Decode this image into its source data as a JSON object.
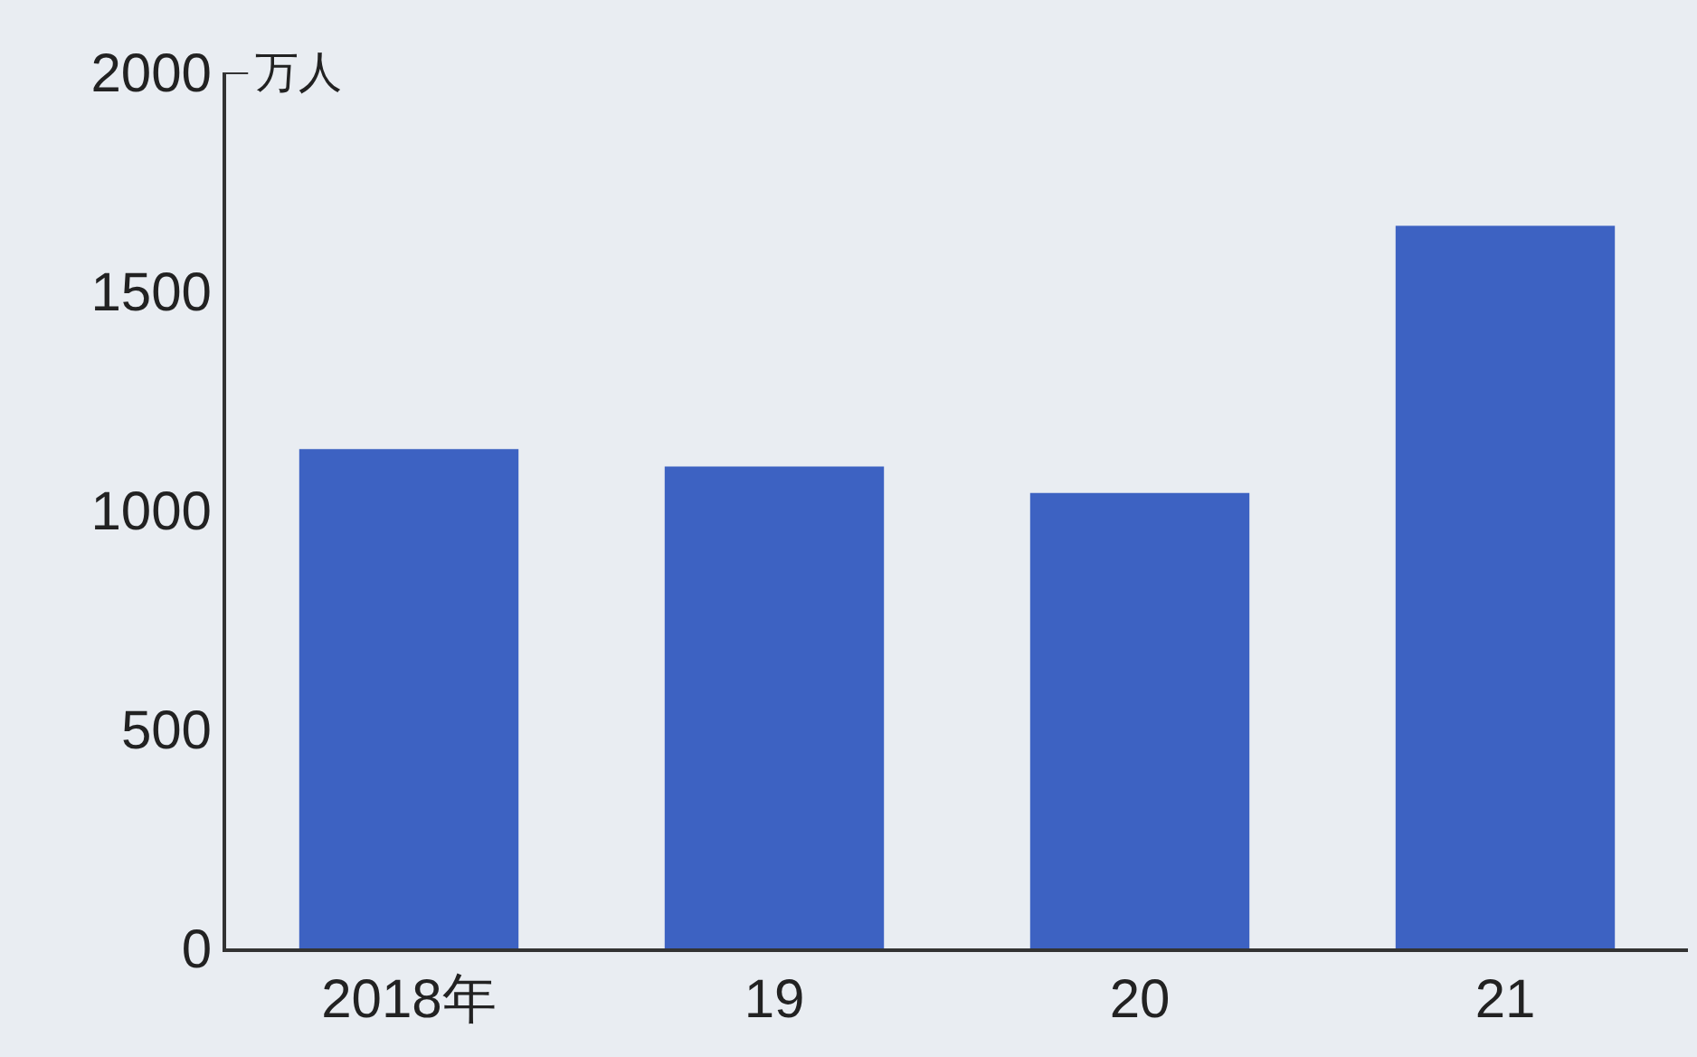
{
  "chart_data": {
    "type": "bar",
    "ylabel": "万人",
    "categories": [
      "2018年",
      "19",
      "20",
      "21"
    ],
    "values": [
      1140,
      1100,
      1040,
      1650
    ],
    "color": "#3d62c2",
    "ylim": [
      0,
      2000
    ],
    "yticks": [
      0,
      500,
      1000,
      1500,
      2000
    ],
    "grid": false,
    "legend": false
  }
}
